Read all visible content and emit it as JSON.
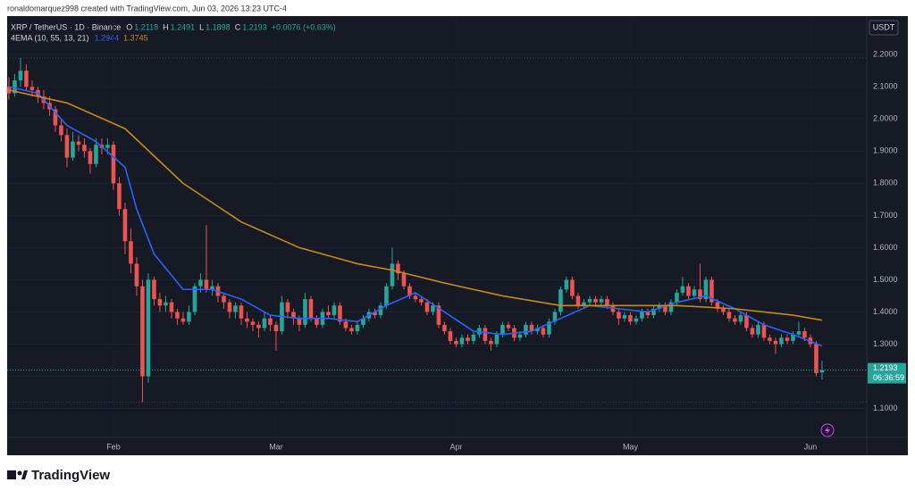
{
  "header": "ronaldomarquez998 created with TradingView.com, Jun 03, 2026 13:23 UTC-4",
  "brand": "TradingView",
  "chart_data": {
    "type": "candlestick",
    "title": "XRP / TetherUS · 1D · Binance",
    "ohlc_labels": [
      "O",
      "H",
      "L",
      "C"
    ],
    "change": "+0.0076 (+0.63%)",
    "indicator": "4EMA (10, 55, 13, 21)",
    "currency": "USDT",
    "countdown": "06:36:59",
    "up_color": "#26a69a",
    "down_color": "#ef5350",
    "grid": true,
    "ylim": [
      1.01,
      2.32
    ],
    "yticks": [
      {
        "value": 1.1,
        "label": "1.1000"
      },
      {
        "value": 1.2,
        "label": "1.2000"
      },
      {
        "value": 1.3,
        "label": "1.3000"
      },
      {
        "value": 1.4,
        "label": "1.4000"
      },
      {
        "value": 1.5,
        "label": "1.5000"
      },
      {
        "value": 1.6,
        "label": "1.6000"
      },
      {
        "value": 1.7,
        "label": "1.7000"
      },
      {
        "value": 1.8,
        "label": "1.8000"
      },
      {
        "value": 1.9,
        "label": "1.9000"
      },
      {
        "value": 2.0,
        "label": "2.0000"
      },
      {
        "value": 2.1,
        "label": "2.1000"
      },
      {
        "value": 2.2,
        "label": "2.2000"
      }
    ],
    "xlim": [
      -0.3,
      147.7
    ],
    "xticks": [
      {
        "value": 18,
        "label": "Feb"
      },
      {
        "value": 46,
        "label": "Mar"
      },
      {
        "value": 77,
        "label": "Apr"
      },
      {
        "value": 107,
        "label": "May"
      },
      {
        "value": 138,
        "label": "Jun"
      }
    ],
    "candles": [
      [
        2.1,
        2.13,
        2.06,
        2.08
      ],
      [
        2.08,
        2.14,
        2.07,
        2.12
      ],
      [
        2.12,
        2.19,
        2.1,
        2.15
      ],
      [
        2.15,
        2.17,
        2.09,
        2.1
      ],
      [
        2.1,
        2.12,
        2.07,
        2.09
      ],
      [
        2.09,
        2.1,
        2.05,
        2.07
      ],
      [
        2.07,
        2.09,
        2.03,
        2.05
      ],
      [
        2.05,
        2.07,
        2.01,
        2.03
      ],
      [
        2.03,
        2.04,
        1.96,
        1.98
      ],
      [
        1.98,
        2.0,
        1.93,
        1.95
      ],
      [
        1.95,
        1.97,
        1.85,
        1.88
      ],
      [
        1.88,
        1.96,
        1.87,
        1.93
      ],
      [
        1.93,
        1.95,
        1.9,
        1.92
      ],
      [
        1.92,
        1.94,
        1.88,
        1.9
      ],
      [
        1.9,
        1.91,
        1.83,
        1.86
      ],
      [
        1.86,
        1.94,
        1.85,
        1.92
      ],
      [
        1.92,
        1.94,
        1.89,
        1.91
      ],
      [
        1.91,
        1.94,
        1.89,
        1.92
      ],
      [
        1.92,
        1.93,
        1.78,
        1.8
      ],
      [
        1.8,
        1.82,
        1.7,
        1.72
      ],
      [
        1.72,
        1.74,
        1.58,
        1.62
      ],
      [
        1.62,
        1.66,
        1.52,
        1.55
      ],
      [
        1.55,
        1.57,
        1.45,
        1.48
      ],
      [
        1.48,
        1.5,
        1.12,
        1.2
      ],
      [
        1.2,
        1.52,
        1.18,
        1.5
      ],
      [
        1.5,
        1.51,
        1.42,
        1.44
      ],
      [
        1.44,
        1.46,
        1.4,
        1.42
      ],
      [
        1.42,
        1.45,
        1.4,
        1.43
      ],
      [
        1.43,
        1.44,
        1.38,
        1.4
      ],
      [
        1.4,
        1.41,
        1.36,
        1.38
      ],
      [
        1.38,
        1.4,
        1.36,
        1.37
      ],
      [
        1.37,
        1.42,
        1.36,
        1.4
      ],
      [
        1.4,
        1.49,
        1.39,
        1.48
      ],
      [
        1.48,
        1.52,
        1.46,
        1.5
      ],
      [
        1.5,
        1.67,
        1.46,
        1.47
      ],
      [
        1.47,
        1.5,
        1.45,
        1.48
      ],
      [
        1.48,
        1.49,
        1.43,
        1.45
      ],
      [
        1.45,
        1.46,
        1.41,
        1.43
      ],
      [
        1.43,
        1.44,
        1.38,
        1.4
      ],
      [
        1.4,
        1.43,
        1.38,
        1.42
      ],
      [
        1.42,
        1.43,
        1.36,
        1.38
      ],
      [
        1.38,
        1.4,
        1.35,
        1.37
      ],
      [
        1.37,
        1.38,
        1.34,
        1.36
      ],
      [
        1.36,
        1.37,
        1.32,
        1.35
      ],
      [
        1.35,
        1.4,
        1.34,
        1.38
      ],
      [
        1.38,
        1.39,
        1.34,
        1.36
      ],
      [
        1.36,
        1.37,
        1.28,
        1.34
      ],
      [
        1.34,
        1.45,
        1.33,
        1.43
      ],
      [
        1.43,
        1.44,
        1.38,
        1.4
      ],
      [
        1.4,
        1.41,
        1.36,
        1.38
      ],
      [
        1.38,
        1.39,
        1.34,
        1.36
      ],
      [
        1.36,
        1.46,
        1.35,
        1.44
      ],
      [
        1.44,
        1.45,
        1.37,
        1.38
      ],
      [
        1.38,
        1.39,
        1.35,
        1.36
      ],
      [
        1.36,
        1.41,
        1.35,
        1.4
      ],
      [
        1.4,
        1.42,
        1.38,
        1.39
      ],
      [
        1.39,
        1.43,
        1.38,
        1.42
      ],
      [
        1.42,
        1.43,
        1.36,
        1.37
      ],
      [
        1.37,
        1.38,
        1.34,
        1.35
      ],
      [
        1.35,
        1.36,
        1.33,
        1.34
      ],
      [
        1.34,
        1.37,
        1.33,
        1.36
      ],
      [
        1.36,
        1.39,
        1.35,
        1.38
      ],
      [
        1.38,
        1.41,
        1.37,
        1.4
      ],
      [
        1.4,
        1.41,
        1.38,
        1.39
      ],
      [
        1.39,
        1.43,
        1.38,
        1.42
      ],
      [
        1.42,
        1.49,
        1.41,
        1.48
      ],
      [
        1.48,
        1.6,
        1.47,
        1.55
      ],
      [
        1.55,
        1.56,
        1.5,
        1.52
      ],
      [
        1.52,
        1.53,
        1.47,
        1.48
      ],
      [
        1.48,
        1.49,
        1.44,
        1.45
      ],
      [
        1.45,
        1.46,
        1.43,
        1.44
      ],
      [
        1.44,
        1.45,
        1.42,
        1.43
      ],
      [
        1.43,
        1.44,
        1.39,
        1.4
      ],
      [
        1.4,
        1.43,
        1.39,
        1.42
      ],
      [
        1.42,
        1.43,
        1.35,
        1.36
      ],
      [
        1.36,
        1.37,
        1.33,
        1.34
      ],
      [
        1.34,
        1.35,
        1.3,
        1.31
      ],
      [
        1.31,
        1.32,
        1.29,
        1.3
      ],
      [
        1.3,
        1.33,
        1.29,
        1.32
      ],
      [
        1.32,
        1.33,
        1.3,
        1.31
      ],
      [
        1.31,
        1.34,
        1.3,
        1.33
      ],
      [
        1.33,
        1.36,
        1.32,
        1.35
      ],
      [
        1.35,
        1.36,
        1.3,
        1.31
      ],
      [
        1.31,
        1.32,
        1.28,
        1.3
      ],
      [
        1.3,
        1.34,
        1.29,
        1.33
      ],
      [
        1.33,
        1.37,
        1.32,
        1.36
      ],
      [
        1.36,
        1.37,
        1.34,
        1.35
      ],
      [
        1.35,
        1.36,
        1.31,
        1.32
      ],
      [
        1.32,
        1.34,
        1.31,
        1.33
      ],
      [
        1.33,
        1.37,
        1.32,
        1.36
      ],
      [
        1.36,
        1.37,
        1.33,
        1.34
      ],
      [
        1.34,
        1.36,
        1.33,
        1.35
      ],
      [
        1.35,
        1.36,
        1.32,
        1.33
      ],
      [
        1.33,
        1.38,
        1.32,
        1.37
      ],
      [
        1.37,
        1.41,
        1.36,
        1.4
      ],
      [
        1.4,
        1.48,
        1.39,
        1.47
      ],
      [
        1.47,
        1.51,
        1.46,
        1.5
      ],
      [
        1.5,
        1.51,
        1.44,
        1.45
      ],
      [
        1.45,
        1.46,
        1.41,
        1.42
      ],
      [
        1.42,
        1.44,
        1.41,
        1.43
      ],
      [
        1.43,
        1.45,
        1.42,
        1.44
      ],
      [
        1.44,
        1.45,
        1.42,
        1.43
      ],
      [
        1.43,
        1.45,
        1.42,
        1.44
      ],
      [
        1.44,
        1.45,
        1.41,
        1.42
      ],
      [
        1.42,
        1.43,
        1.39,
        1.4
      ],
      [
        1.4,
        1.41,
        1.36,
        1.38
      ],
      [
        1.38,
        1.4,
        1.37,
        1.39
      ],
      [
        1.39,
        1.4,
        1.36,
        1.37
      ],
      [
        1.37,
        1.39,
        1.36,
        1.38
      ],
      [
        1.38,
        1.41,
        1.37,
        1.4
      ],
      [
        1.4,
        1.41,
        1.38,
        1.39
      ],
      [
        1.39,
        1.42,
        1.38,
        1.41
      ],
      [
        1.41,
        1.43,
        1.4,
        1.42
      ],
      [
        1.42,
        1.43,
        1.39,
        1.4
      ],
      [
        1.4,
        1.44,
        1.39,
        1.43
      ],
      [
        1.43,
        1.47,
        1.42,
        1.46
      ],
      [
        1.46,
        1.51,
        1.45,
        1.48
      ],
      [
        1.48,
        1.49,
        1.44,
        1.45
      ],
      [
        1.45,
        1.48,
        1.44,
        1.47
      ],
      [
        1.47,
        1.55,
        1.43,
        1.44
      ],
      [
        1.44,
        1.51,
        1.43,
        1.5
      ],
      [
        1.5,
        1.51,
        1.42,
        1.43
      ],
      [
        1.43,
        1.44,
        1.4,
        1.41
      ],
      [
        1.41,
        1.42,
        1.39,
        1.4
      ],
      [
        1.4,
        1.41,
        1.37,
        1.38
      ],
      [
        1.38,
        1.39,
        1.36,
        1.37
      ],
      [
        1.37,
        1.4,
        1.36,
        1.39
      ],
      [
        1.39,
        1.4,
        1.34,
        1.35
      ],
      [
        1.35,
        1.36,
        1.32,
        1.33
      ],
      [
        1.33,
        1.37,
        1.32,
        1.36
      ],
      [
        1.36,
        1.37,
        1.31,
        1.32
      ],
      [
        1.32,
        1.33,
        1.3,
        1.31
      ],
      [
        1.31,
        1.32,
        1.27,
        1.3
      ],
      [
        1.3,
        1.33,
        1.29,
        1.32
      ],
      [
        1.32,
        1.33,
        1.3,
        1.31
      ],
      [
        1.31,
        1.34,
        1.3,
        1.33
      ],
      [
        1.33,
        1.37,
        1.32,
        1.34
      ],
      [
        1.34,
        1.35,
        1.31,
        1.32
      ],
      [
        1.32,
        1.33,
        1.29,
        1.3
      ],
      [
        1.3,
        1.31,
        1.2,
        1.21
      ],
      [
        1.2118,
        1.2491,
        1.1898,
        1.2193
      ]
    ],
    "series": [
      {
        "color": "#2962ff",
        "x": [
          0,
          5,
          10,
          15,
          20,
          22,
          25,
          30,
          35,
          40,
          45,
          50,
          55,
          60,
          65,
          70,
          75,
          80,
          85,
          90,
          95,
          100,
          105,
          110,
          115,
          120,
          125,
          130,
          135,
          140
        ],
        "values": [
          2.1,
          2.08,
          1.98,
          1.93,
          1.85,
          1.72,
          1.58,
          1.47,
          1.47,
          1.44,
          1.39,
          1.38,
          1.38,
          1.37,
          1.42,
          1.46,
          1.4,
          1.34,
          1.33,
          1.34,
          1.38,
          1.42,
          1.41,
          1.4,
          1.43,
          1.45,
          1.41,
          1.36,
          1.33,
          1.2944
        ]
      },
      {
        "color": "#c8891b",
        "x": [
          0,
          10,
          20,
          30,
          40,
          50,
          60,
          66,
          75,
          85,
          95,
          105,
          115,
          125,
          135,
          140
        ],
        "values": [
          2.09,
          2.05,
          1.97,
          1.8,
          1.68,
          1.6,
          1.55,
          1.53,
          1.49,
          1.45,
          1.42,
          1.42,
          1.42,
          1.41,
          1.39,
          1.3745
        ]
      }
    ]
  }
}
